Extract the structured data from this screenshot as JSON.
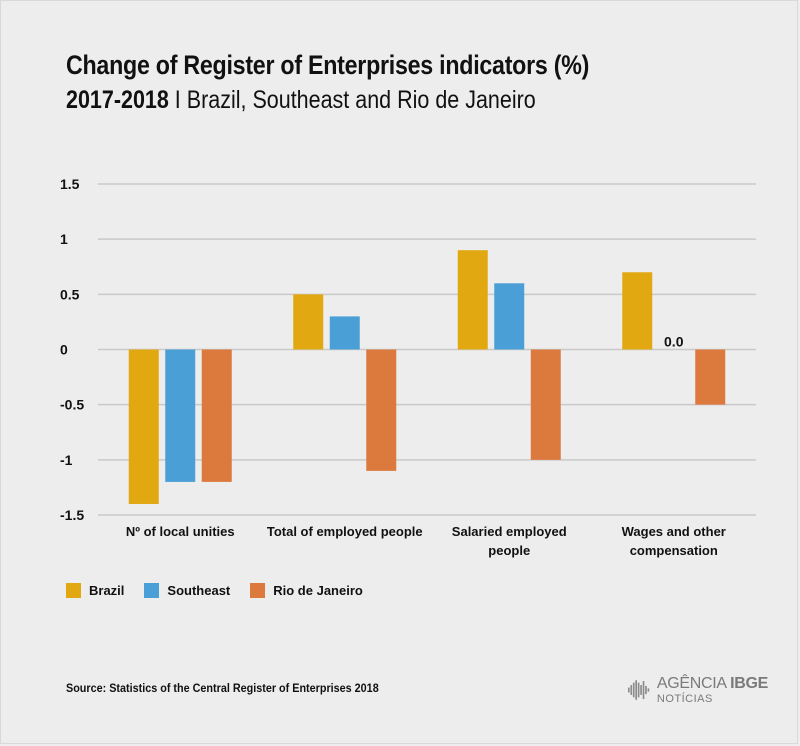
{
  "title": "Change of Register of Enterprises indicators (%)",
  "subtitle_period": "2017-2018",
  "subtitle_rest": " I Brazil, Southeast and Rio de Janeiro",
  "source": "Source: Statistics of the Central Register of Enterprises 2018",
  "logo": {
    "main": "AGÊNCIA",
    "bold": "IBGE",
    "sub": "NOTÍCIAS"
  },
  "chart_data": {
    "type": "bar",
    "categories": [
      [
        "Nº of local unities"
      ],
      [
        "Total of employed people"
      ],
      [
        "Salaried employed",
        "people"
      ],
      [
        "Wages and other",
        "compensation"
      ]
    ],
    "series": [
      {
        "name": "Brazil",
        "color": "#e2a812",
        "values": [
          -1.4,
          0.5,
          0.9,
          0.7
        ]
      },
      {
        "name": "Southeast",
        "color": "#4a9fd6",
        "values": [
          -1.2,
          0.3,
          0.6,
          0.0
        ]
      },
      {
        "name": "Rio de Janeiro",
        "color": "#dc7a3e",
        "values": [
          -1.2,
          -1.1,
          -1.0,
          -0.5
        ]
      }
    ],
    "ylim": [
      -1.5,
      1.5
    ],
    "yticks": [
      1.5,
      1,
      0.5,
      0,
      -0.5,
      -1,
      -1.5
    ],
    "ytick_labels": [
      "1.5",
      "1",
      "0.5",
      "0",
      "-0.5",
      "-1",
      "-1.5"
    ],
    "data_labels": [
      {
        "series": 1,
        "category": 3,
        "text": "0.0"
      }
    ],
    "grid": true,
    "legend_position": "bottom-left"
  }
}
